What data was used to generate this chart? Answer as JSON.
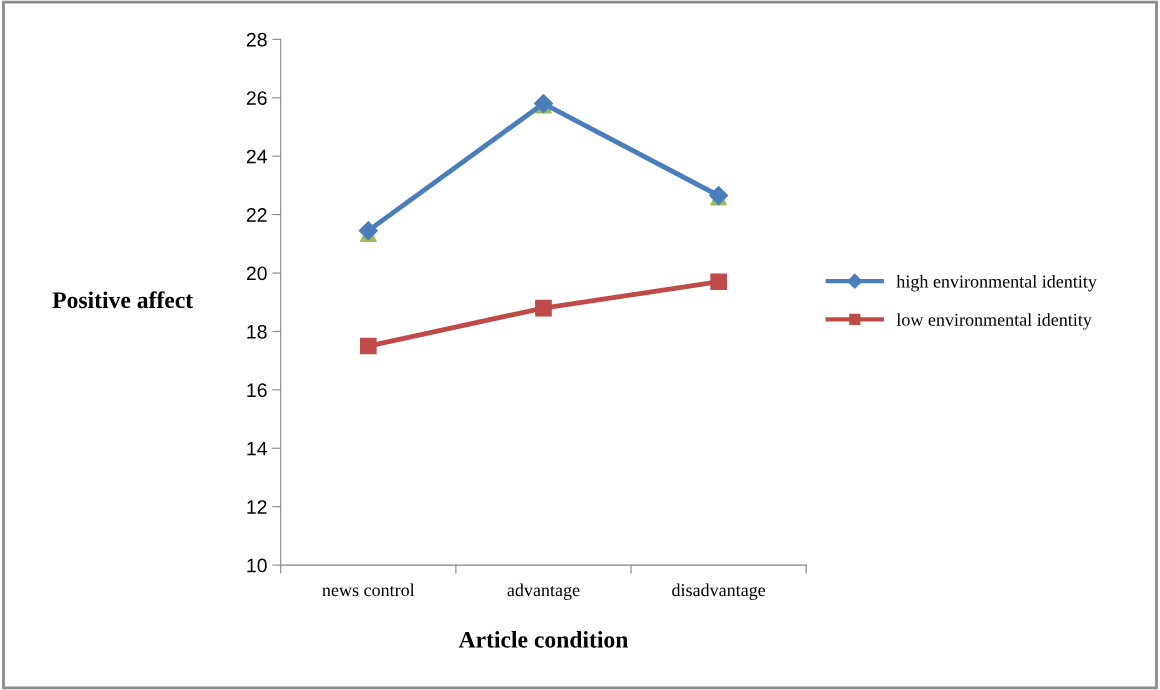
{
  "chart_data": {
    "type": "line",
    "xlabel": "Article condition",
    "ylabel": "Positive affect",
    "categories": [
      "news control",
      "advantage",
      "disadvantage"
    ],
    "series": [
      {
        "type": "scatter",
        "color": "#9bbb59",
        "marker": "triangle",
        "values": [
          21.35,
          25.75,
          22.6
        ]
      },
      {
        "name": "high environmental identity",
        "color": "#4a7ebb",
        "marker": "diamond",
        "values": [
          21.45,
          25.8,
          22.65
        ]
      },
      {
        "name": "low environmental identity",
        "color": "#be4b48",
        "marker": "square",
        "values": [
          17.5,
          18.8,
          19.7
        ]
      }
    ],
    "ylim": [
      10,
      28
    ],
    "yticks": [
      10,
      12,
      14,
      16,
      18,
      20,
      22,
      24,
      26,
      28
    ],
    "grid": false,
    "legend": "right"
  }
}
